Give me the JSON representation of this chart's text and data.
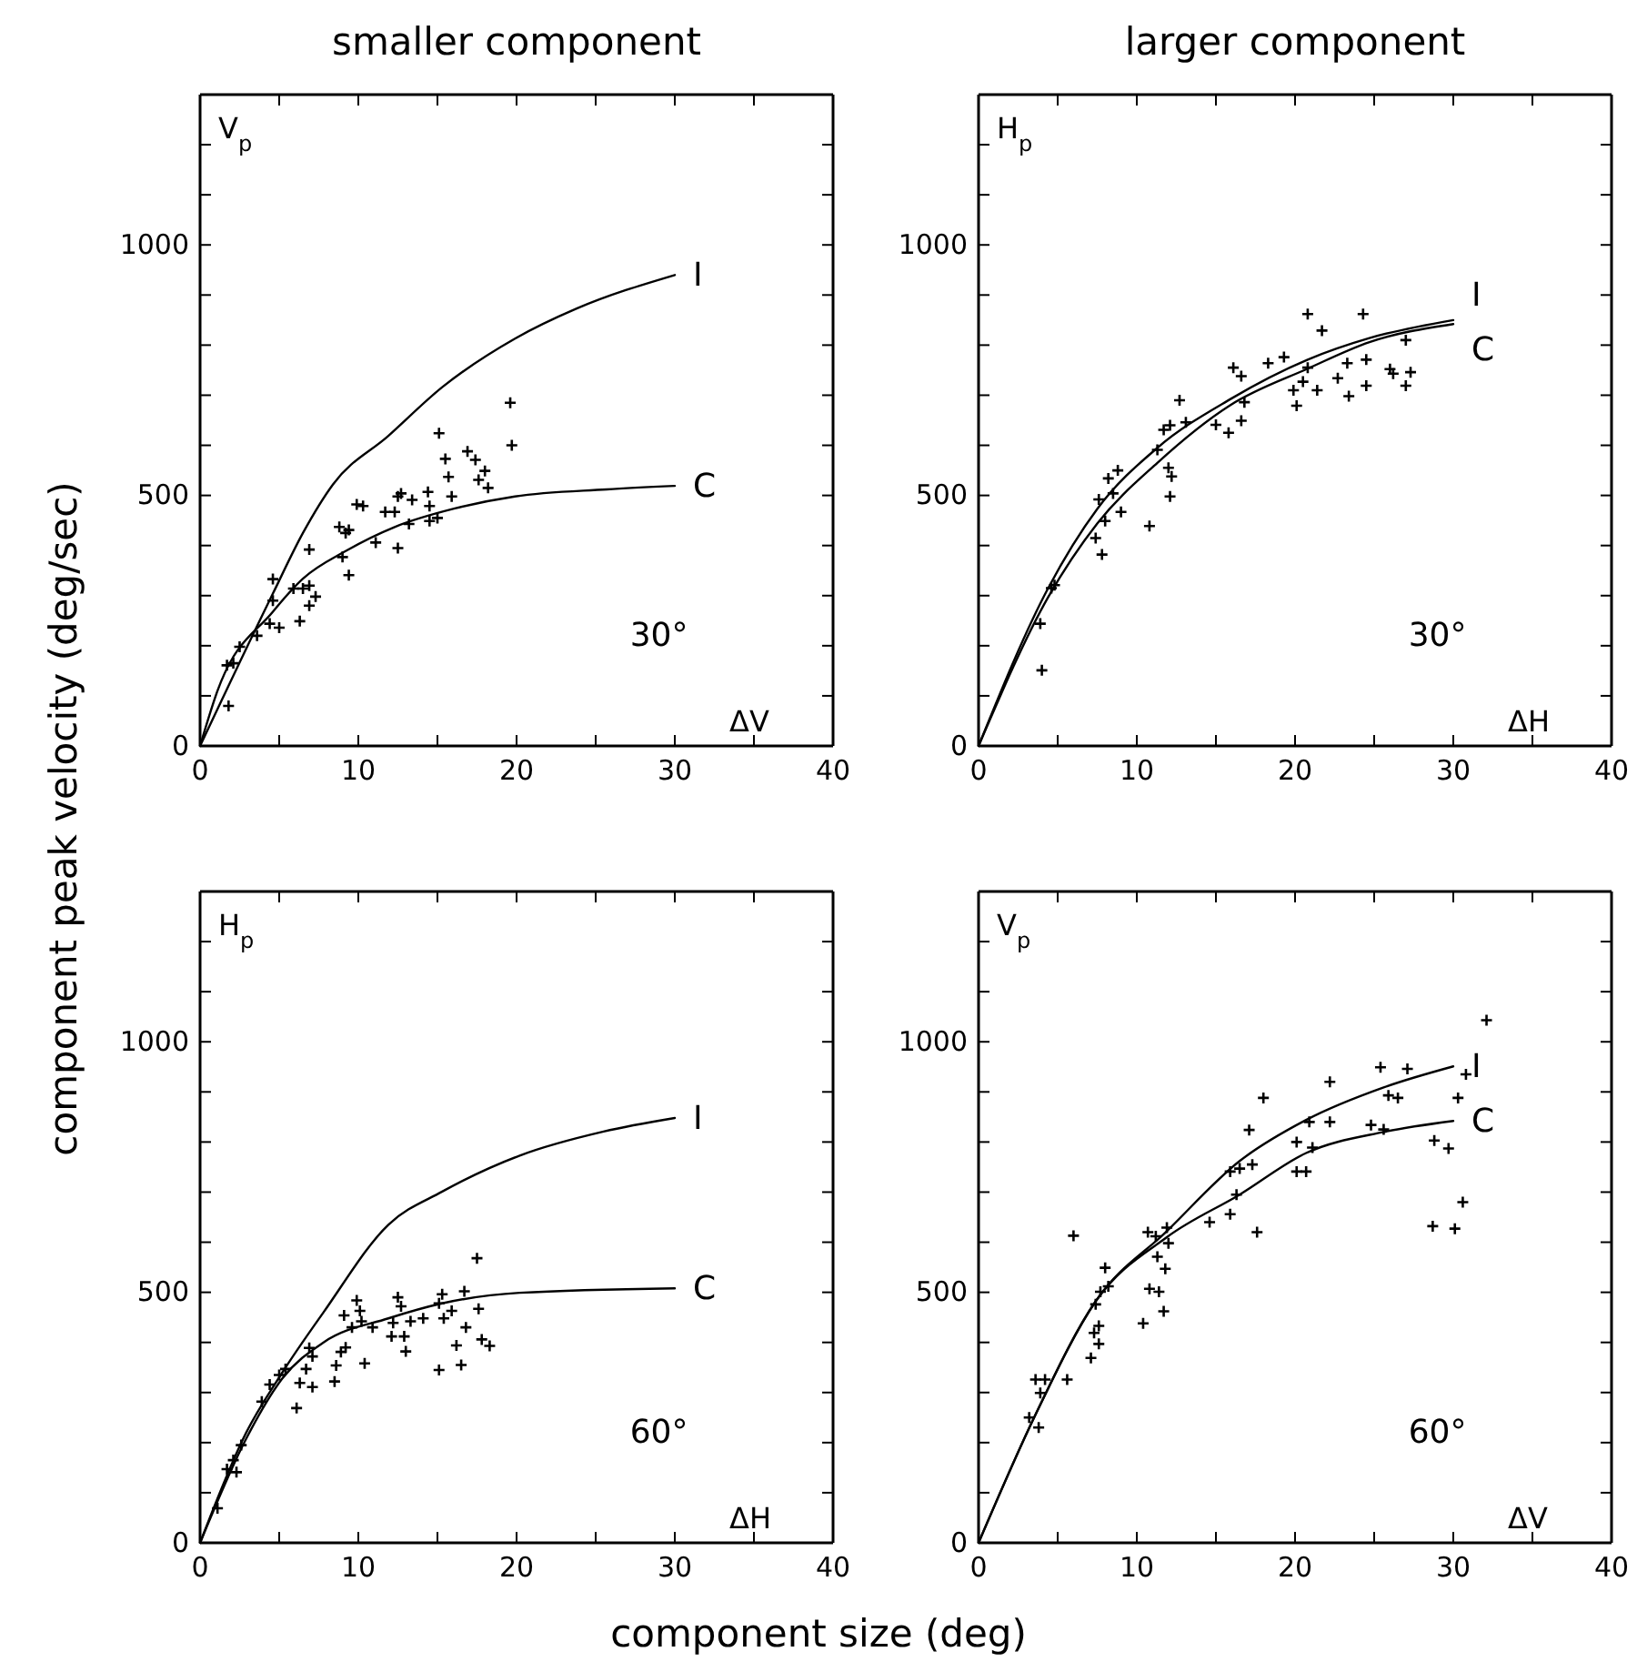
{
  "chart_data": [
    {
      "type": "scatter",
      "title": "smaller component",
      "xlabel": "ΔV",
      "ylabel": "V$_{p}$",
      "xlim": [
        0,
        40
      ],
      "ylim": [
        0,
        1300
      ],
      "xticks": [
        0,
        {
          "value": 5,
          "label": null
        },
        10,
        {
          "value": 15,
          "label": null
        },
        20,
        {
          "value": 25,
          "label": null
        },
        30,
        {
          "value": 35,
          "label": null
        },
        40
      ],
      "yticks": [
        0,
        {
          "value": 100,
          "label": null
        },
        {
          "value": 200,
          "label": null
        },
        {
          "value": 300,
          "label": null
        },
        {
          "value": 400,
          "label": null
        },
        500,
        {
          "value": 600,
          "label": null
        },
        {
          "value": 700,
          "label": null
        },
        {
          "value": 800,
          "label": null
        },
        {
          "value": 900,
          "label": null
        },
        1000,
        {
          "value": 1100,
          "label": null
        },
        {
          "value": 1200,
          "label": null
        }
      ],
      "annotations": [
        "30°",
        "component peak velocity (deg/sec)"
      ],
      "series": [
        {
          "name": "I",
          "type": "line",
          "color": "#000000",
          "x": [
            0,
            4.6,
            6.5,
            8.4,
            11.9,
            15.3,
            19.9,
            23.8,
            30
          ],
          "values": [
            0,
            304,
            425,
            522,
            619,
            716,
            813,
            873,
            940
          ]
        },
        {
          "name": "C",
          "type": "line",
          "color": "#000000",
          "x": [
            0,
            1.1,
            4.6,
            6.5,
            9.2,
            12.3,
            16.1,
            19.9,
            25.7,
            30
          ],
          "values": [
            0,
            110,
            268,
            334,
            389,
            437,
            474,
            498,
            512,
            519
          ]
        },
        {
          "type": "scatter",
          "marker": "cross",
          "color": "#000000",
          "x": [
            1.8,
            1.7,
            2.1,
            2.5,
            3.6,
            4.4,
            5.0,
            4.6,
            4.6,
            5.9,
            6.9,
            6.5,
            6.3,
            6.9,
            7.3,
            6.9,
            8.8,
            9.2,
            9.4,
            9.0,
            9.4,
            9.9,
            10.3,
            11.1,
            11.7,
            12.3,
            12.5,
            12.5,
            12.7,
            13.4,
            13.2,
            14.4,
            14.5,
            14.5,
            15.0,
            15.1,
            15.5,
            15.7,
            15.9,
            16.9,
            17.4,
            17.6,
            18.0,
            18.2,
            19.6,
            19.7
          ],
          "values": [
            80,
            161,
            165,
            198,
            220,
            244,
            236,
            333,
            290,
            314,
            320,
            314,
            249,
            280,
            298,
            392,
            437,
            425,
            431,
            377,
            341,
            482,
            479,
            406,
            467,
            467,
            395,
            498,
            504,
            491,
            443,
            507,
            479,
            449,
            455,
            624,
            573,
            537,
            498,
            588,
            571,
            531,
            549,
            515,
            685,
            600
          ]
        }
      ]
    },
    {
      "type": "scatter",
      "title": "larger component",
      "xlabel": "ΔH",
      "ylabel": "H$_{p}$",
      "xlim": [
        0,
        40
      ],
      "ylim": [
        0,
        1300
      ],
      "xticks": [
        0,
        {
          "value": 5,
          "label": null
        },
        10,
        {
          "value": 15,
          "label": null
        },
        20,
        {
          "value": 25,
          "label": null
        },
        30,
        {
          "value": 35,
          "label": null
        },
        40
      ],
      "yticks": [
        0,
        {
          "value": 100,
          "label": null
        },
        {
          "value": 200,
          "label": null
        },
        {
          "value": 300,
          "label": null
        },
        {
          "value": 400,
          "label": null
        },
        500,
        {
          "value": 600,
          "label": null
        },
        {
          "value": 700,
          "label": null
        },
        {
          "value": 800,
          "label": null
        },
        {
          "value": 900,
          "label": null
        },
        1000,
        {
          "value": 1100,
          "label": null
        },
        {
          "value": 1200,
          "label": null
        }
      ],
      "annotations": [
        "30°"
      ],
      "series": [
        {
          "name": "I",
          "type": "line",
          "color": "#000000",
          "x": [
            0,
            4.4,
            7.5,
            11.3,
            15.9,
            20.8,
            24.7,
            30
          ],
          "values": [
            0,
            315,
            473,
            595,
            692,
            771,
            814,
            850
          ]
        },
        {
          "name": "C",
          "type": "line",
          "color": "#000000",
          "x": [
            0,
            4.4,
            7.5,
            11.3,
            15.9,
            20.8,
            24.7,
            30
          ],
          "values": [
            0,
            297,
            444,
            565,
            680,
            753,
            806,
            842
          ]
        },
        {
          "type": "scatter",
          "marker": "cross",
          "color": "#000000",
          "x": [
            4.0,
            3.9,
            4.6,
            4.8,
            7.4,
            7.8,
            8.0,
            7.6,
            8.2,
            8.8,
            8.5,
            9.0,
            10.8,
            11.3,
            11.7,
            12.1,
            12.0,
            12.2,
            12.1,
            12.7,
            13.1,
            15.0,
            15.8,
            16.1,
            16.6,
            16.6,
            16.8,
            18.3,
            19.3,
            19.9,
            20.1,
            20.5,
            20.8,
            20.8,
            21.4,
            21.7,
            22.7,
            23.3,
            23.4,
            24.3,
            24.5,
            24.5,
            26.0,
            26.2,
            27.0,
            27.0,
            27.3
          ],
          "values": [
            151,
            244,
            315,
            321,
            415,
            382,
            449,
            492,
            534,
            550,
            504,
            467,
            439,
            591,
            631,
            640,
            555,
            538,
            498,
            690,
            646,
            641,
            625,
            755,
            738,
            649,
            686,
            764,
            776,
            710,
            679,
            727,
            862,
            755,
            710,
            829,
            734,
            764,
            698,
            862,
            771,
            719,
            752,
            743,
            810,
            719,
            746
          ]
        }
      ]
    },
    {
      "type": "scatter",
      "xlabel": "ΔH",
      "ylabel": "H$_{p}$",
      "xlim": [
        0,
        40
      ],
      "ylim": [
        0,
        1300
      ],
      "xticks": [
        0,
        {
          "value": 5,
          "label": null
        },
        10,
        {
          "value": 15,
          "label": null
        },
        20,
        {
          "value": 25,
          "label": null
        },
        30,
        {
          "value": 35,
          "label": null
        },
        40
      ],
      "yticks": [
        0,
        {
          "value": 100,
          "label": null
        },
        {
          "value": 200,
          "label": null
        },
        {
          "value": 300,
          "label": null
        },
        {
          "value": 400,
          "label": null
        },
        500,
        {
          "value": 600,
          "label": null
        },
        {
          "value": 700,
          "label": null
        },
        {
          "value": 800,
          "label": null
        },
        {
          "value": 900,
          "label": null
        },
        1000,
        {
          "value": 1100,
          "label": null
        },
        {
          "value": 1200,
          "label": null
        }
      ],
      "annotations": [
        "60°",
        "component size (deg)"
      ],
      "series": [
        {
          "name": "I",
          "type": "line",
          "color": "#000000",
          "x": [
            0,
            2.9,
            5.2,
            7.8,
            11.9,
            15.3,
            20.2,
            25.5,
            30
          ],
          "values": [
            0,
            219,
            340,
            460,
            635,
            701,
            773,
            821,
            848
          ]
        },
        {
          "name": "C",
          "type": "line",
          "color": "#000000",
          "x": [
            0,
            2.9,
            5.2,
            7.8,
            11.9,
            15.3,
            20.2,
            30
          ],
          "values": [
            0,
            207,
            328,
            400,
            448,
            478,
            499,
            508
          ]
        },
        {
          "type": "scatter",
          "marker": "cross",
          "color": "#000000",
          "x": [
            1.1,
            1.7,
            2.3,
            2.1,
            2.6,
            3.9,
            4.4,
            5.0,
            5.4,
            6.1,
            6.3,
            6.7,
            7.1,
            6.9,
            7.1,
            8.5,
            8.6,
            8.9,
            9.1,
            9.2,
            9.6,
            9.9,
            10.1,
            10.2,
            10.4,
            10.9,
            12.1,
            12.2,
            12.5,
            12.7,
            12.9,
            13.0,
            13.3,
            14.1,
            15.1,
            15.1,
            15.3,
            15.4,
            15.9,
            16.2,
            16.5,
            16.7,
            16.8,
            17.6,
            17.5,
            17.8,
            18.3
          ],
          "values": [
            69,
            147,
            141,
            165,
            195,
            282,
            316,
            335,
            347,
            269,
            319,
            347,
            311,
            389,
            372,
            322,
            354,
            381,
            454,
            390,
            430,
            484,
            463,
            442,
            358,
            430,
            412,
            439,
            490,
            472,
            412,
            382,
            442,
            448,
            345,
            478,
            496,
            448,
            463,
            394,
            355,
            502,
            430,
            467,
            568,
            406,
            393
          ]
        }
      ]
    },
    {
      "type": "scatter",
      "xlabel": "ΔV",
      "ylabel": "V$_{p}$",
      "xlim": [
        0,
        40
      ],
      "ylim": [
        0,
        1300
      ],
      "xticks": [
        0,
        {
          "value": 5,
          "label": null
        },
        10,
        {
          "value": 15,
          "label": null
        },
        20,
        {
          "value": 25,
          "label": null
        },
        30,
        {
          "value": 35,
          "label": null
        },
        40
      ],
      "yticks": [
        0,
        {
          "value": 100,
          "label": null
        },
        {
          "value": 200,
          "label": null
        },
        {
          "value": 300,
          "label": null
        },
        {
          "value": 400,
          "label": null
        },
        500,
        {
          "value": 600,
          "label": null
        },
        {
          "value": 700,
          "label": null
        },
        {
          "value": 800,
          "label": null
        },
        {
          "value": 900,
          "label": null
        },
        1000,
        {
          "value": 1100,
          "label": null
        },
        {
          "value": 1200,
          "label": null
        }
      ],
      "annotations": [
        "60°"
      ],
      "series": [
        {
          "name": "I",
          "type": "line",
          "color": "#000000",
          "x": [
            0,
            3.6,
            7.4,
            11.9,
            16.5,
            20.7,
            25.6,
            30
          ],
          "values": [
            0,
            256,
            482,
            622,
            762,
            844,
            909,
            951
          ]
        },
        {
          "name": "C",
          "type": "line",
          "color": "#000000",
          "x": [
            0,
            3.6,
            7.4,
            11.9,
            16.5,
            20.7,
            25.6,
            30
          ],
          "values": [
            0,
            256,
            482,
            610,
            695,
            778,
            820,
            842
          ]
        },
        {
          "type": "scatter",
          "marker": "cross",
          "color": "#000000",
          "x": [
            3.2,
            3.8,
            3.6,
            4.2,
            3.9,
            5.6,
            6.0,
            7.1,
            7.3,
            7.6,
            7.6,
            7.4,
            7.7,
            8.0,
            8.2,
            10.4,
            10.8,
            10.7,
            11.2,
            11.3,
            11.4,
            11.7,
            11.8,
            11.9,
            12.0,
            14.6,
            15.9,
            15.9,
            16.3,
            16.5,
            17.1,
            17.3,
            17.6,
            18.0,
            20.1,
            20.1,
            20.7,
            20.9,
            21.1,
            22.2,
            22.2,
            24.8,
            25.4,
            25.6,
            25.9,
            26.5,
            27.1,
            28.8,
            28.7,
            29.7,
            30.1,
            30.3,
            30.6,
            30.8,
            32.1
          ],
          "values": [
            250,
            230,
            326,
            326,
            299,
            326,
            613,
            369,
            419,
            397,
            433,
            476,
            501,
            549,
            512,
            438,
            507,
            620,
            612,
            571,
            501,
            462,
            547,
            629,
            598,
            640,
            656,
            741,
            695,
            747,
            824,
            755,
            620,
            888,
            800,
            741,
            741,
            840,
            789,
            920,
            840,
            834,
            949,
            825,
            893,
            888,
            946,
            803,
            632,
            787,
            627,
            888,
            680,
            935,
            1043
          ]
        }
      ]
    }
  ]
}
